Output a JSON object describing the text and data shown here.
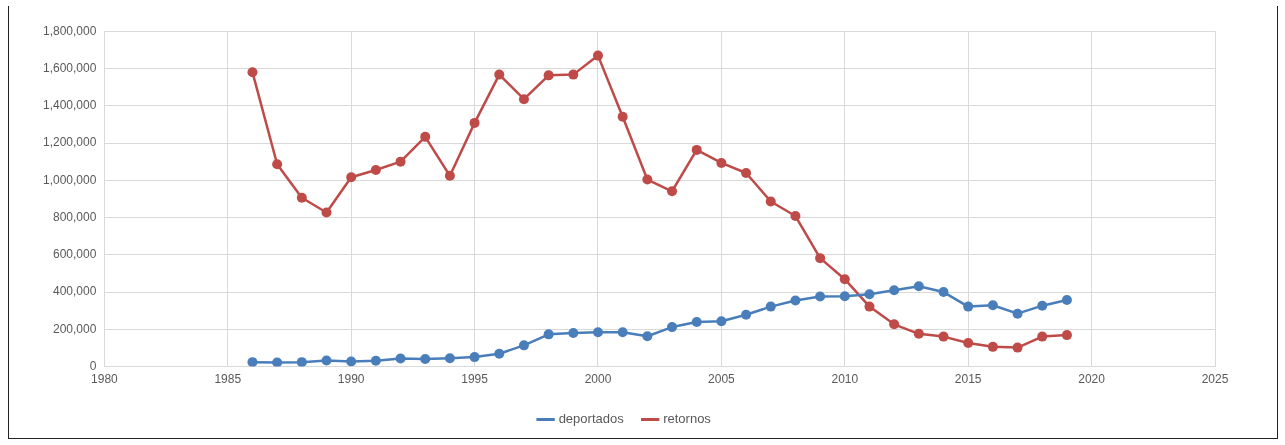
{
  "chart_data": {
    "type": "line",
    "x": [
      1986,
      1987,
      1988,
      1989,
      1990,
      1991,
      1992,
      1993,
      1994,
      1995,
      1996,
      1997,
      1998,
      1999,
      2000,
      2001,
      2002,
      2003,
      2004,
      2005,
      2006,
      2007,
      2008,
      2009,
      2010,
      2011,
      2012,
      2013,
      2014,
      2015,
      2016,
      2017,
      2018,
      2019
    ],
    "series": [
      {
        "name": "deportados",
        "color": "#4a7ebb",
        "values": [
          24000,
          22000,
          24000,
          33000,
          27000,
          31000,
          43000,
          41000,
          45000,
          51000,
          69000,
          114000,
          173000,
          180000,
          184000,
          184000,
          163000,
          212000,
          239000,
          243000,
          278000,
          322000,
          355000,
          376000,
          378000,
          388000,
          410000,
          431000,
          400000,
          322000,
          329000,
          284000,
          327000,
          357000
        ]
      },
      {
        "name": "retornos",
        "color": "#be4b48",
        "values": [
          1580000,
          1086000,
          906000,
          827000,
          1016000,
          1055000,
          1100000,
          1233000,
          1024000,
          1308000,
          1567000,
          1435000,
          1563000,
          1567000,
          1669000,
          1341000,
          1004000,
          941000,
          1163000,
          1093000,
          1039000,
          886000,
          808000,
          582000,
          469000,
          322000,
          227000,
          176000,
          161000,
          127000,
          106000,
          102000,
          161000,
          169000
        ]
      }
    ],
    "xlim": [
      1980,
      2025
    ],
    "xticks": [
      1980,
      1985,
      1990,
      1995,
      2000,
      2005,
      2010,
      2015,
      2020,
      2025
    ],
    "ylim": [
      0,
      1800000
    ],
    "yticks": [
      0,
      {
        "value": 200000,
        "label": "200,000"
      },
      {
        "value": 400000,
        "label": "400,000"
      },
      {
        "value": 600000,
        "label": "600,000"
      },
      {
        "value": 800000,
        "label": "800,000"
      },
      {
        "value": 1000000,
        "label": "1,000,000"
      },
      {
        "value": 1200000,
        "label": "1,200,000"
      },
      {
        "value": 1400000,
        "label": "1,400,000"
      },
      {
        "value": 1600000,
        "label": "1,600,000"
      },
      {
        "value": 1800000,
        "label": "1,800,000"
      }
    ],
    "grid": true,
    "legend": "bottom",
    "marker": "circle",
    "line_style": "solid"
  }
}
